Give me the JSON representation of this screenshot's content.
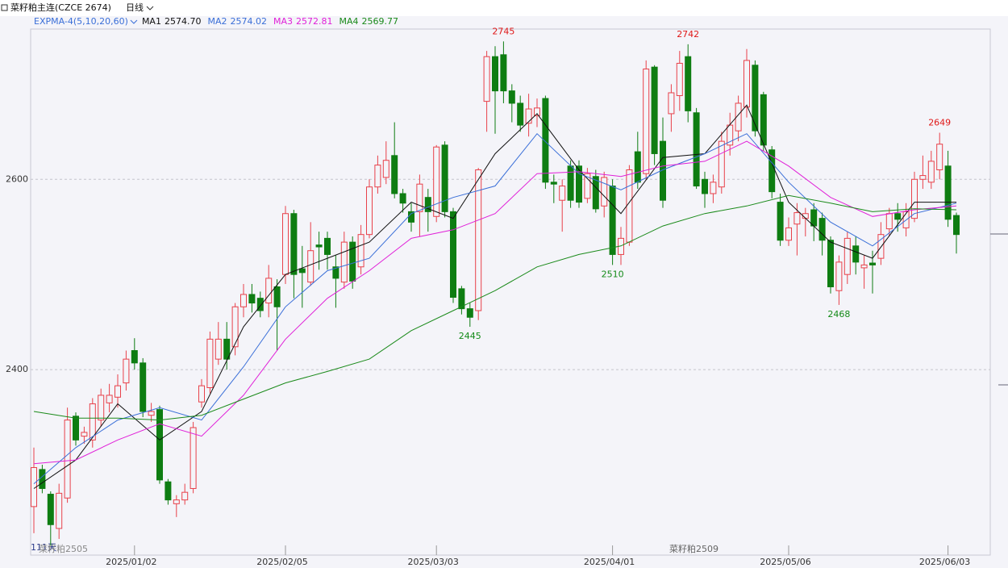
{
  "header": {
    "title": "菜籽粕主连(CZCE 2674)",
    "period": "日线"
  },
  "chart_data": {
    "type": "candlestick",
    "indicator": "EXPMA-4(5,10,20,60)",
    "categories": [
      null,
      null,
      null,
      null,
      null,
      null,
      null,
      null,
      null,
      null,
      null,
      null,
      "2025/01/02",
      null,
      null,
      null,
      null,
      null,
      null,
      null,
      null,
      null,
      null,
      null,
      null,
      null,
      null,
      null,
      null,
      null,
      "2025/02/05",
      null,
      null,
      null,
      null,
      null,
      null,
      null,
      null,
      null,
      null,
      null,
      null,
      null,
      null,
      null,
      null,
      null,
      "2025/03/03",
      null,
      null,
      null,
      null,
      null,
      null,
      null,
      null,
      null,
      null,
      null,
      null,
      null,
      null,
      null,
      null,
      null,
      null,
      null,
      null,
      "2025/04/01",
      null,
      null,
      null,
      null,
      null,
      null,
      null,
      null,
      null,
      null,
      null,
      null,
      null,
      null,
      null,
      null,
      null,
      null,
      null,
      null,
      "2025/05/06",
      null,
      null,
      null,
      null,
      null,
      null,
      null,
      null,
      null,
      null,
      null,
      null,
      null,
      null,
      null,
      null,
      null,
      null,
      "2025/06/03",
      null
    ],
    "open": [
      2256,
      2295,
      2269,
      2233,
      2265,
      2351,
      2330,
      2326,
      2347,
      2365,
      2371,
      2386,
      2420,
      2407,
      2352,
      2358,
      2282,
      2259,
      2263,
      2275,
      2366,
      2381,
      2411,
      2432,
      2424,
      2466,
      2479,
      2475,
      2470,
      2487,
      2500,
      2564,
      2506,
      2492,
      2531,
      2538,
      2508,
      2492,
      2534,
      2508,
      2542,
      2592,
      2602,
      2625,
      2585,
      2566,
      2566,
      2581,
      2561,
      2636,
      2566,
      2485,
      2464,
      2462,
      2682,
      2729,
      2731,
      2693,
      2680,
      2659,
      2667,
      2685,
      2597,
      2578,
      2614,
      2614,
      2580,
      2603,
      2572,
      2593,
      2521,
      2534,
      2629,
      2606,
      2718,
      2640,
      2669,
      2688,
      2729,
      2670,
      2600,
      2585,
      2592,
      2636,
      2651,
      2676,
      2720,
      2689,
      2631,
      2576,
      2536,
      2553,
      2559,
      2568,
      2559,
      2536,
      2483,
      2500,
      2530,
      2507,
      2512,
      2517,
      2548,
      2564,
      2549,
      2559,
      2600,
      2597,
      2610,
      2614,
      2562
    ],
    "high": [
      2318,
      2300,
      2272,
      2280,
      2360,
      2355,
      2340,
      2370,
      2380,
      2385,
      2395,
      2420,
      2433,
      2412,
      2365,
      2362,
      2285,
      2268,
      2280,
      2345,
      2390,
      2440,
      2450,
      2450,
      2470,
      2490,
      2490,
      2482,
      2510,
      2495,
      2572,
      2568,
      2530,
      2555,
      2545,
      2545,
      2520,
      2545,
      2540,
      2552,
      2600,
      2625,
      2640,
      2660,
      2590,
      2575,
      2605,
      2590,
      2636,
      2640,
      2570,
      2488,
      2470,
      2612,
      2735,
      2740,
      2745,
      2700,
      2688,
      2690,
      2685,
      2688,
      2605,
      2600,
      2620,
      2620,
      2612,
      2610,
      2608,
      2600,
      2550,
      2615,
      2650,
      2725,
      2720,
      2665,
      2700,
      2735,
      2742,
      2675,
      2608,
      2605,
      2650,
      2670,
      2688,
      2737,
      2725,
      2692,
      2635,
      2585,
      2560,
      2575,
      2570,
      2575,
      2565,
      2540,
      2520,
      2545,
      2540,
      2520,
      2525,
      2555,
      2570,
      2575,
      2575,
      2608,
      2625,
      2630,
      2649,
      2630,
      2565
    ],
    "low": [
      2228,
      2270,
      2215,
      2222,
      2260,
      2320,
      2322,
      2318,
      2340,
      2355,
      2360,
      2378,
      2400,
      2350,
      2345,
      2280,
      2258,
      2245,
      2258,
      2270,
      2360,
      2375,
      2405,
      2400,
      2415,
      2455,
      2460,
      2455,
      2455,
      2420,
      2490,
      2475,
      2465,
      2488,
      2505,
      2505,
      2465,
      2485,
      2485,
      2500,
      2538,
      2585,
      2595,
      2580,
      2565,
      2545,
      2540,
      2545,
      2555,
      2560,
      2470,
      2458,
      2445,
      2452,
      2650,
      2648,
      2680,
      2660,
      2650,
      2645,
      2655,
      2590,
      2575,
      2545,
      2570,
      2570,
      2575,
      2565,
      2560,
      2510,
      2510,
      2530,
      2590,
      2600,
      2615,
      2570,
      2650,
      2672,
      2660,
      2590,
      2570,
      2575,
      2585,
      2625,
      2640,
      2665,
      2645,
      2630,
      2580,
      2530,
      2530,
      2520,
      2540,
      2535,
      2520,
      2480,
      2468,
      2490,
      2500,
      2485,
      2480,
      2510,
      2540,
      2545,
      2540,
      2555,
      2590,
      2590,
      2600,
      2550,
      2522
    ],
    "close": [
      2297,
      2275,
      2237,
      2270,
      2347,
      2326,
      2334,
      2364,
      2373,
      2373,
      2383,
      2411,
      2407,
      2356,
      2356,
      2284,
      2263,
      2263,
      2271,
      2339,
      2383,
      2432,
      2432,
      2411,
      2466,
      2479,
      2470,
      2462,
      2496,
      2466,
      2564,
      2500,
      2502,
      2525,
      2529,
      2521,
      2496,
      2534,
      2493,
      2542,
      2592,
      2615,
      2620,
      2585,
      2575,
      2555,
      2595,
      2566,
      2634,
      2566,
      2476,
      2464,
      2455,
      2610,
      2729,
      2693,
      2693,
      2680,
      2657,
      2674,
      2675,
      2597,
      2595,
      2593,
      2578,
      2576,
      2606,
      2569,
      2602,
      2521,
      2538,
      2610,
      2597,
      2716,
      2627,
      2578,
      2691,
      2722,
      2672,
      2593,
      2585,
      2597,
      2640,
      2657,
      2680,
      2725,
      2651,
      2636,
      2587,
      2536,
      2549,
      2565,
      2564,
      2551,
      2536,
      2487,
      2513,
      2538,
      2513,
      2510,
      2510,
      2542,
      2564,
      2558,
      2566,
      2600,
      2604,
      2619,
      2637,
      2558,
      2542
    ],
    "up_color": "#e8414a",
    "down_color": "#0e7d12",
    "labeled_highs": [
      56,
      78,
      108
    ],
    "labeled_lows": [
      52,
      69,
      96
    ],
    "lines": [
      {
        "name": "MA1",
        "color": "#111111",
        "legend_value": {
          "value": 2574.7,
          "label": "2574.70"
        },
        "x": [
          0,
          5,
          10,
          15,
          20,
          25,
          30,
          35,
          40,
          45,
          50,
          55,
          60,
          65,
          70,
          75,
          80,
          85,
          90,
          95,
          100,
          105,
          110
        ],
        "values": [
          2275,
          2305,
          2364,
          2326,
          2356,
          2445,
          2500,
          2517,
          2534,
          2576,
          2559,
          2627,
          2669,
          2610,
          2564,
          2623,
          2627,
          2678,
          2576,
          2534,
          2517,
          2576,
          2576
        ]
      },
      {
        "name": "MA2",
        "color": "#3a6fd8",
        "legend_value": {
          "value": 2574.02,
          "label": "2574.02"
        },
        "x": [
          0,
          5,
          10,
          15,
          20,
          25,
          30,
          35,
          40,
          45,
          50,
          55,
          60,
          65,
          70,
          75,
          80,
          85,
          90,
          95,
          100,
          105,
          110
        ],
        "values": [
          2280,
          2318,
          2347,
          2360,
          2347,
          2403,
          2466,
          2504,
          2517,
          2564,
          2581,
          2593,
          2648,
          2606,
          2589,
          2610,
          2627,
          2648,
          2597,
          2555,
          2530,
          2564,
          2575
        ]
      },
      {
        "name": "MA3",
        "color": "#e020d8",
        "legend_value": {
          "value": 2572.81,
          "label": "2572.81"
        },
        "x": [
          0,
          5,
          10,
          15,
          20,
          25,
          30,
          35,
          40,
          45,
          50,
          55,
          60,
          65,
          70,
          75,
          80,
          85,
          90,
          95,
          100,
          105,
          110
        ],
        "values": [
          2301,
          2305,
          2326,
          2343,
          2330,
          2373,
          2432,
          2475,
          2504,
          2538,
          2547,
          2564,
          2606,
          2608,
          2603,
          2614,
          2619,
          2640,
          2614,
          2581,
          2561,
          2568,
          2572
        ]
      },
      {
        "name": "MA4",
        "color": "#1a8a1a",
        "legend_value": {
          "value": 2569.77,
          "label": "2569.77"
        },
        "x": [
          0,
          5,
          10,
          15,
          20,
          25,
          30,
          35,
          40,
          45,
          50,
          55,
          60,
          65,
          70,
          75,
          80,
          85,
          90,
          95,
          100,
          105,
          110
        ],
        "values": [
          2356,
          2349,
          2349,
          2347,
          2352,
          2369,
          2386,
          2398,
          2411,
          2441,
          2462,
          2483,
          2508,
          2521,
          2530,
          2551,
          2564,
          2572,
          2583,
          2575,
          2566,
          2569,
          2568
        ]
      }
    ],
    "ylim": [
      2205,
      2758
    ],
    "yticks": [
      2400,
      2600
    ],
    "grid": true,
    "days_label": "111天",
    "contract_labels": [
      "菜籽粕2505",
      "菜籽粕2509"
    ]
  }
}
